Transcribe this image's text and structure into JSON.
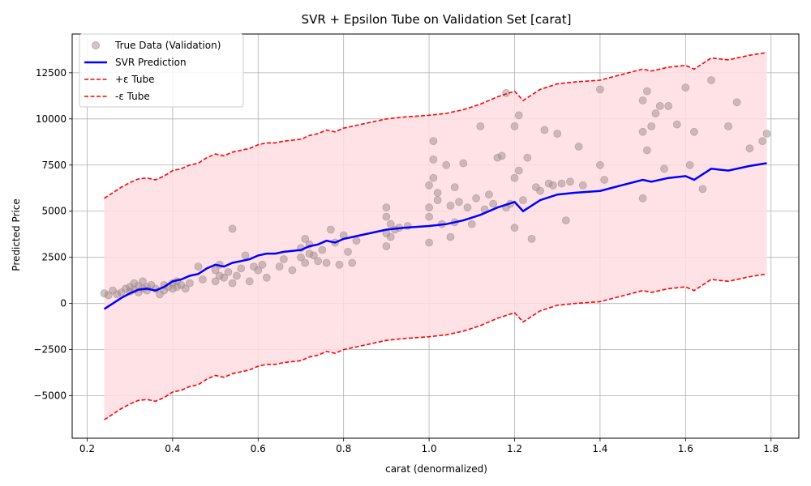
{
  "chart_data": {
    "type": "scatter",
    "title": "SVR + Epsilon Tube on Validation Set [carat]",
    "xlabel": "carat (denormalized)",
    "ylabel": "Predicted Price",
    "xlim": [
      0.165,
      1.865
    ],
    "ylim": [
      -7300,
      14600
    ],
    "xticks": [
      0.2,
      0.4,
      0.6,
      0.8,
      1.0,
      1.2,
      1.4,
      1.6,
      1.8
    ],
    "xtick_labels": [
      "0.2",
      "0.4",
      "0.6",
      "0.8",
      "1.0",
      "1.2",
      "1.4",
      "1.6",
      "1.8"
    ],
    "yticks": [
      -5000,
      -2500,
      0,
      2500,
      5000,
      7500,
      10000,
      12500
    ],
    "ytick_labels": [
      "−5000",
      "−2500",
      "0",
      "2500",
      "5000",
      "7500",
      "10000",
      "12500"
    ],
    "grid": true,
    "legend_position": "top-left",
    "epsilon": 6000,
    "colors": {
      "points": "#a08c8c",
      "prediction": "#0000ff",
      "tube": "#ff0000",
      "fill": "#ffdde2"
    },
    "legend": [
      {
        "label": "True Data (Validation)",
        "kind": "marker"
      },
      {
        "label": "SVR Prediction",
        "kind": "solid"
      },
      {
        "label": "+ε Tube",
        "kind": "dashed"
      },
      {
        "label": "-ε Tube",
        "kind": "dashed"
      }
    ],
    "series": [
      {
        "name": "SVR Prediction",
        "x": [
          0.24,
          0.26,
          0.28,
          0.3,
          0.32,
          0.34,
          0.36,
          0.38,
          0.4,
          0.42,
          0.44,
          0.46,
          0.48,
          0.5,
          0.52,
          0.54,
          0.56,
          0.58,
          0.6,
          0.62,
          0.64,
          0.66,
          0.7,
          0.72,
          0.74,
          0.76,
          0.78,
          0.8,
          0.84,
          0.9,
          0.94,
          1.0,
          1.04,
          1.08,
          1.12,
          1.16,
          1.2,
          1.22,
          1.26,
          1.3,
          1.34,
          1.4,
          1.45,
          1.5,
          1.52,
          1.56,
          1.6,
          1.62,
          1.66,
          1.7,
          1.75,
          1.79
        ],
        "y": [
          -300,
          0,
          300,
          550,
          750,
          800,
          700,
          900,
          1200,
          1300,
          1500,
          1600,
          1900,
          2100,
          2000,
          2200,
          2300,
          2400,
          2600,
          2700,
          2700,
          2800,
          2900,
          3100,
          3200,
          3400,
          3300,
          3500,
          3700,
          4000,
          4100,
          4200,
          4300,
          4500,
          4800,
          5200,
          5500,
          5000,
          5600,
          5900,
          6000,
          6100,
          6400,
          6700,
          6600,
          6800,
          6900,
          6700,
          7300,
          7200,
          7450,
          7600
        ]
      },
      {
        "name": "True Data (Validation)",
        "x": [
          0.24,
          0.25,
          0.26,
          0.27,
          0.28,
          0.29,
          0.3,
          0.3,
          0.31,
          0.31,
          0.32,
          0.32,
          0.33,
          0.33,
          0.34,
          0.34,
          0.35,
          0.36,
          0.37,
          0.38,
          0.38,
          0.39,
          0.4,
          0.4,
          0.41,
          0.41,
          0.42,
          0.43,
          0.44,
          0.46,
          0.47,
          0.5,
          0.5,
          0.51,
          0.51,
          0.52,
          0.53,
          0.54,
          0.54,
          0.55,
          0.56,
          0.57,
          0.58,
          0.59,
          0.6,
          0.61,
          0.62,
          0.65,
          0.66,
          0.68,
          0.7,
          0.7,
          0.71,
          0.71,
          0.72,
          0.72,
          0.73,
          0.74,
          0.75,
          0.76,
          0.77,
          0.78,
          0.79,
          0.8,
          0.81,
          0.82,
          0.83,
          0.9,
          0.9,
          0.9,
          0.9,
          0.91,
          0.91,
          0.92,
          0.93,
          0.95,
          1.0,
          1.0,
          1.0,
          1.0,
          1.01,
          1.01,
          1.01,
          1.02,
          1.02,
          1.03,
          1.04,
          1.05,
          1.05,
          1.06,
          1.06,
          1.07,
          1.08,
          1.09,
          1.1,
          1.11,
          1.12,
          1.13,
          1.14,
          1.15,
          1.16,
          1.17,
          1.18,
          1.18,
          1.19,
          1.2,
          1.2,
          1.2,
          1.21,
          1.21,
          1.22,
          1.23,
          1.24,
          1.25,
          1.26,
          1.27,
          1.28,
          1.29,
          1.3,
          1.31,
          1.32,
          1.33,
          1.35,
          1.36,
          1.4,
          1.4,
          1.41,
          1.5,
          1.5,
          1.5,
          1.51,
          1.51,
          1.52,
          1.53,
          1.54,
          1.55,
          1.56,
          1.58,
          1.6,
          1.61,
          1.62,
          1.64,
          1.66,
          1.7,
          1.72,
          1.75,
          1.78,
          1.79
        ],
        "y": [
          550,
          450,
          700,
          500,
          600,
          800,
          900,
          650,
          1100,
          750,
          950,
          600,
          1200,
          800,
          900,
          700,
          1000,
          800,
          500,
          1000,
          700,
          900,
          1100,
          800,
          1200,
          900,
          1000,
          800,
          1100,
          2000,
          1300,
          1800,
          1200,
          1500,
          2100,
          1400,
          1700,
          4050,
          1100,
          1500,
          1900,
          2600,
          1200,
          2000,
          1800,
          2100,
          1400,
          2000,
          2400,
          1800,
          2500,
          3000,
          2200,
          3500,
          2700,
          3200,
          2600,
          2300,
          2900,
          2200,
          4000,
          3300,
          2100,
          3700,
          2800,
          2200,
          3400,
          5200,
          4700,
          3100,
          3800,
          4300,
          3600,
          4000,
          4100,
          4200,
          3300,
          4700,
          5200,
          6400,
          7800,
          6800,
          8800,
          5600,
          6000,
          4300,
          7500,
          3600,
          5300,
          6300,
          4400,
          5500,
          7600,
          5200,
          4300,
          5700,
          9600,
          5100,
          5900,
          5400,
          7900,
          8000,
          5200,
          11400,
          5400,
          4100,
          6800,
          9600,
          7200,
          10200,
          5600,
          7900,
          3500,
          6300,
          6100,
          9400,
          6500,
          6400,
          9200,
          6500,
          4500,
          6600,
          8500,
          6400,
          7500,
          11600,
          6700,
          5700,
          9300,
          11000,
          8300,
          11500,
          9600,
          10300,
          10700,
          7300,
          10700,
          9700,
          11700,
          7500,
          9300,
          6200,
          12100,
          9600,
          10900,
          8400,
          8800,
          9200
        ]
      }
    ]
  }
}
